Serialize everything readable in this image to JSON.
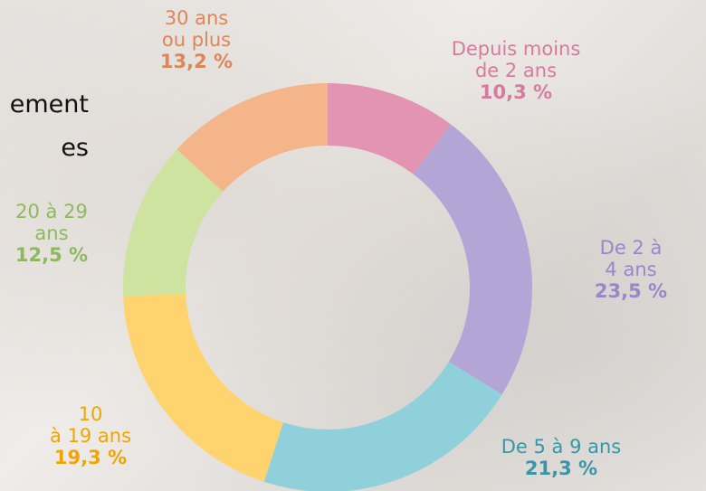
{
  "chart_data": {
    "type": "donut",
    "title": "ement\nes",
    "categories": [
      "Depuis moins\nde 2 ans",
      "De 2 à 4 ans",
      "De 5 à 9 ans",
      "10\nà 19 ans",
      "20 à 29\nans",
      "30 ans\nou plus"
    ],
    "values": [
      10.3,
      23.5,
      21.3,
      19.3,
      12.5,
      13.2
    ],
    "value_labels": [
      "10,3 %",
      "23,5 %",
      "21,3 %",
      "19,3 %",
      "12,5 %",
      "13,2 %"
    ],
    "colors": [
      "#e294b2",
      "#b3a6d6",
      "#8fd0db",
      "#ffd46e",
      "#cfe3a0",
      "#f5b58b"
    ],
    "label_colors": [
      "#d67aa0",
      "#9a86c8",
      "#3896a6",
      "#f0a500",
      "#8cb960",
      "#de8658"
    ]
  }
}
